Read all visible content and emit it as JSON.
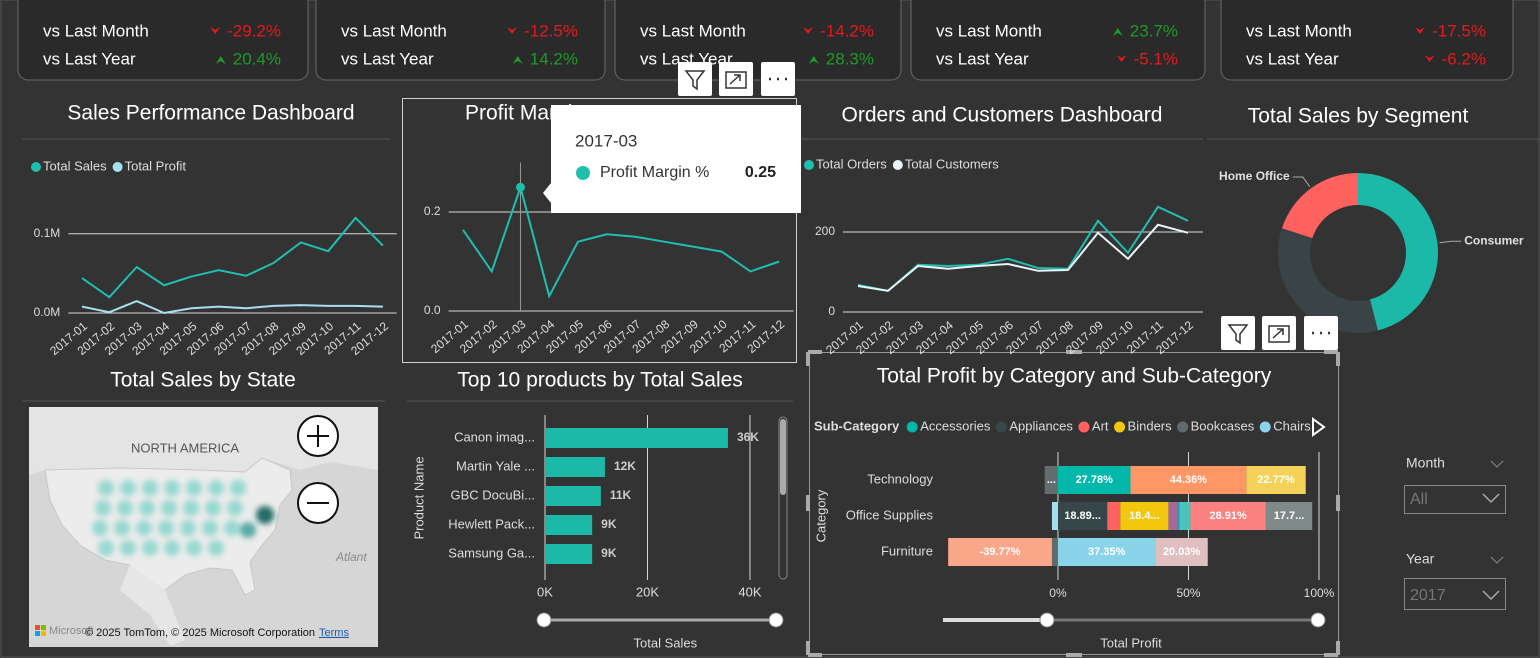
{
  "kpi_cards": [
    {
      "rows": [
        {
          "label": "vs Last Month",
          "value": "-29.2%"
        },
        {
          "label": "vs Last Year",
          "value": "20.4%"
        }
      ]
    },
    {
      "rows": [
        {
          "label": "vs Last Month",
          "value": "-12.5%"
        },
        {
          "label": "vs Last Year",
          "value": "14.2%"
        }
      ]
    },
    {
      "rows": [
        {
          "label": "vs Last Month",
          "value": "-14.2%"
        },
        {
          "label": "vs Last Year",
          "value": "28.3%"
        }
      ]
    },
    {
      "rows": [
        {
          "label": "vs Last Month",
          "value": "23.7%"
        },
        {
          "label": "vs Last Year",
          "value": "-5.1%"
        }
      ]
    },
    {
      "rows": [
        {
          "label": "vs Last Month",
          "value": "-17.5%"
        },
        {
          "label": "vs Last Year",
          "value": "-6.2%"
        }
      ]
    }
  ],
  "chart_data": [
    {
      "type": "line",
      "title": "Sales Performance Dashboard",
      "categories": [
        "2017-01",
        "2017-02",
        "2017-03",
        "2017-04",
        "2017-05",
        "2017-06",
        "2017-07",
        "2017-08",
        "2017-09",
        "2017-10",
        "2017-11",
        "2017-12"
      ],
      "series": [
        {
          "name": "Total Sales",
          "color": "#1fbfb0",
          "values": [
            44000,
            20000,
            58000,
            35000,
            46000,
            54000,
            47000,
            63000,
            89000,
            78000,
            120000,
            85000
          ]
        },
        {
          "name": "Total Profit",
          "color": "#a8dff0",
          "values": [
            8000,
            1000,
            15000,
            0,
            6000,
            8000,
            6000,
            9000,
            10000,
            9000,
            9000,
            8000
          ]
        }
      ],
      "ylim": [
        0,
        140000
      ],
      "yticks": [
        {
          "value": 0,
          "label": "0.0M"
        },
        {
          "value": 100000,
          "label": "0.1M"
        }
      ],
      "grid": true,
      "legend": true
    },
    {
      "type": "line",
      "title": "Profit Margin",
      "categories": [
        "2017-01",
        "2017-02",
        "2017-03",
        "2017-04",
        "2017-05",
        "2017-06",
        "2017-07",
        "2017-08",
        "2017-09",
        "2017-10",
        "2017-11",
        "2017-12"
      ],
      "series": [
        {
          "name": "Profit Margin %",
          "color": "#1fbfb0",
          "values": [
            0.164,
            0.08,
            0.25,
            0.03,
            0.14,
            0.155,
            0.15,
            0.14,
            0.13,
            0.12,
            0.08,
            0.1
          ]
        }
      ],
      "ylim": [
        0,
        0.3
      ],
      "yticks": [
        {
          "value": 0,
          "label": "0.0"
        },
        0.2
      ],
      "grid": true,
      "legend": false,
      "tooltip_index": 2
    },
    {
      "type": "line",
      "title": "Orders and Customers Dashboard",
      "categories": [
        "2017-01",
        "2017-02",
        "2017-03",
        "2017-04",
        "2017-05",
        "2017-06",
        "2017-07",
        "2017-08",
        "2017-09",
        "2017-10",
        "2017-11",
        "2017-12"
      ],
      "series": [
        {
          "name": "Total Orders",
          "color": "#1fbfb0",
          "values": [
            68,
            53,
            118,
            115,
            118,
            133,
            110,
            108,
            228,
            148,
            263,
            228
          ]
        },
        {
          "name": "Total Customers",
          "color": "#e8f4f8",
          "values": [
            65,
            53,
            115,
            108,
            115,
            120,
            103,
            105,
            198,
            133,
            218,
            198
          ]
        }
      ],
      "ylim": [
        0,
        300
      ],
      "yticks": [
        0,
        200
      ],
      "grid": true,
      "legend": true
    },
    {
      "type": "donut",
      "title": "Total Sales by Segment",
      "categories": [
        "Consumer",
        null,
        "Home Office"
      ],
      "values": [
        46,
        34,
        20
      ],
      "colors": [
        "#1cb8a8",
        "#3a4346",
        "#fd625e"
      ]
    },
    {
      "type": "map",
      "title": "Total Sales by State",
      "labels": {
        "region": "NORTH AMERICA",
        "ocean": "Atlant",
        "logo": "Microsoft",
        "copyright": "© 2025 TomTom, © 2025 Microsoft Corporation",
        "terms": "Terms"
      }
    },
    {
      "type": "bar",
      "title": "Top 10 products by Total Sales",
      "categories": [
        "Canon imag...",
        "Martin Yale ...",
        "GBC DocuBi...",
        "Hewlett Pack...",
        "Samsung Ga..."
      ],
      "values": [
        35700,
        11700,
        10900,
        9200,
        9200
      ],
      "value_labels": [
        "36K",
        "12K",
        "11K",
        "9K",
        "9K"
      ],
      "color": "#1cb8a8",
      "xlim": [
        0,
        45000
      ],
      "xticks": [
        {
          "value": 0,
          "label": "0K"
        },
        {
          "value": 20000,
          "label": "20K"
        },
        {
          "value": 40000,
          "label": "40K"
        }
      ],
      "x_label": "Total Sales",
      "y_label": "Product Name"
    },
    {
      "type": "stacked_bar_100",
      "title": "Total Profit by Category and Sub-Category",
      "legend_title": "Sub-Category",
      "categories": [
        "Technology",
        "Office Supplies",
        "Furniture"
      ],
      "series": [
        {
          "name": "Accessories",
          "color": "#01b8aa",
          "values": [
            27.78,
            null,
            null
          ],
          "value_labels": [
            "27.78%",
            null,
            null
          ]
        },
        {
          "name": "Appliances",
          "color": "#374649",
          "values": [
            null,
            18.89,
            null
          ],
          "value_labels": [
            null,
            "18.89...",
            null
          ]
        },
        {
          "name": "Art",
          "color": "#fd625e",
          "values": [
            null,
            4.98,
            null
          ],
          "value_labels": [
            null,
            null,
            null
          ]
        },
        {
          "name": "Binders",
          "color": "#f2c80f",
          "values": [
            null,
            18.45,
            null
          ],
          "value_labels": [
            null,
            "18.4...",
            null
          ]
        },
        {
          "name": "Bookcases",
          "color": "#5f6b6d",
          "values": [
            null,
            null,
            -2.3
          ],
          "value_labels": [
            null,
            null,
            null
          ]
        },
        {
          "name": "Chairs",
          "color": "#8ad4eb",
          "values": [
            null,
            null,
            37.35
          ],
          "value_labels": [
            null,
            null,
            "37.35%"
          ]
        },
        {
          "name": null,
          "color": "#fe9666",
          "values": [
            44.36,
            null,
            null
          ],
          "value_labels": [
            "44.36%",
            null,
            null
          ]
        },
        {
          "name": null,
          "color": "#a66999",
          "values": [
            null,
            3.45,
            null
          ],
          "value_labels": [
            null,
            null,
            null
          ]
        },
        {
          "name": null,
          "color": "#3599b8",
          "values": [
            null,
            0.77,
            null
          ],
          "value_labels": [
            null,
            null,
            null
          ]
        },
        {
          "name": null,
          "color": "#dfbfbf",
          "values": [
            null,
            null,
            20.03
          ],
          "value_labels": [
            null,
            null,
            "20.03%"
          ]
        },
        {
          "name": null,
          "color": "#4ac5bb",
          "values": [
            null,
            4.2,
            null
          ],
          "value_labels": [
            null,
            null,
            null
          ]
        },
        {
          "name": null,
          "color": "#636d6f",
          "values": [
            -5.09,
            null,
            null
          ],
          "value_labels": [
            "...",
            null,
            null
          ]
        },
        {
          "name": null,
          "color": "#fb8281",
          "values": [
            null,
            28.91,
            null
          ],
          "value_labels": [
            null,
            "28.91%",
            null
          ]
        },
        {
          "name": null,
          "color": "#f4d25a",
          "values": [
            22.77,
            null,
            null
          ],
          "value_labels": [
            "22.77%",
            null,
            null
          ]
        },
        {
          "name": null,
          "color": "#7f898a",
          "values": [
            null,
            17.75,
            null
          ],
          "value_labels": [
            null,
            "17.7...",
            null
          ]
        },
        {
          "name": null,
          "color": "#a4ddee",
          "values": [
            null,
            -2.3,
            null
          ],
          "value_labels": [
            null,
            null,
            null
          ]
        },
        {
          "name": null,
          "color": "#f9a689",
          "values": [
            null,
            null,
            -39.77
          ],
          "value_labels": [
            null,
            null,
            "-39.77%"
          ]
        }
      ],
      "xlim": [
        -45,
        100
      ],
      "xticks": [
        {
          "value": 0,
          "label": "0%"
        },
        {
          "value": 50,
          "label": "50%"
        },
        {
          "value": 100,
          "label": "100%"
        }
      ],
      "x_label": "Total Profit",
      "y_label": "Category"
    }
  ],
  "slicers": [
    {
      "label": "Month",
      "value": "All"
    },
    {
      "label": "Year",
      "value": "2017"
    }
  ]
}
